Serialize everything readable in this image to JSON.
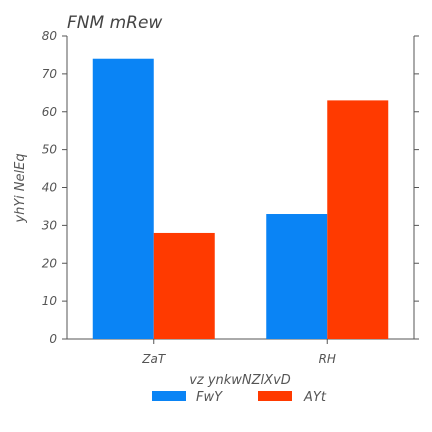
{
  "chart_data": {
    "type": "bar",
    "title": "FNM mRew",
    "xlabel": "vz ynkwNZlXvD",
    "ylabel": "yhYi NelEq",
    "categories": [
      "ZaT",
      "RH"
    ],
    "series": [
      {
        "name": "FwY",
        "values": [
          74,
          33
        ],
        "color": "#0a84f5"
      },
      {
        "name": "AYt",
        "values": [
          28,
          63
        ],
        "color": "#ff3a00"
      }
    ],
    "ylim": [
      0,
      80
    ],
    "yticks": [
      0,
      10,
      20,
      30,
      40,
      50,
      60,
      70,
      80
    ],
    "grid": false,
    "legend_position": "bottom-center"
  }
}
